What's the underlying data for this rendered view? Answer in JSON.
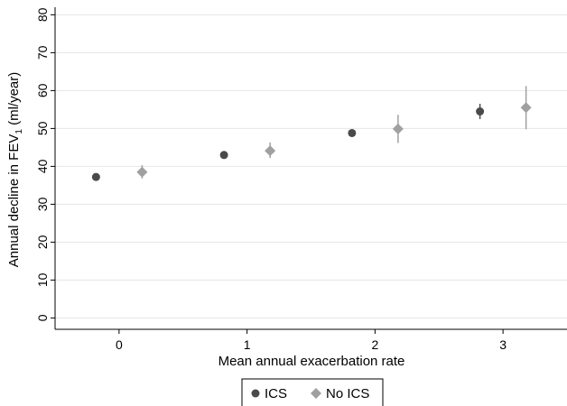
{
  "chart_data": {
    "type": "scatter",
    "title": "",
    "xlabel": "Mean annual exacerbation rate",
    "ylabel_main": "Annual decline in FEV",
    "ylabel_sub": "1",
    "ylabel_tail": " (ml/year)",
    "xlim": [
      -0.5,
      3.5
    ],
    "ylim": [
      -3,
      82
    ],
    "x_ticks": [
      0,
      1,
      2,
      3
    ],
    "y_ticks": [
      0,
      10,
      20,
      30,
      40,
      50,
      60,
      70,
      80
    ],
    "grid": "horizontal",
    "legend_position": "bottom",
    "series": [
      {
        "name": "ICS",
        "marker": "circle",
        "color": "#4a4a4a",
        "points": [
          {
            "x": 0,
            "y": 37.2,
            "lo": 36.8,
            "hi": 37.6
          },
          {
            "x": 1,
            "y": 43.0,
            "lo": 42.6,
            "hi": 43.4
          },
          {
            "x": 2,
            "y": 48.8,
            "lo": 47.8,
            "hi": 49.8
          },
          {
            "x": 3,
            "y": 54.5,
            "lo": 52.5,
            "hi": 56.5
          }
        ]
      },
      {
        "name": "No ICS",
        "marker": "diamond",
        "color": "#a0a0a0",
        "points": [
          {
            "x": 0,
            "y": 38.5,
            "lo": 36.8,
            "hi": 40.3
          },
          {
            "x": 1,
            "y": 44.1,
            "lo": 42.2,
            "hi": 46.3
          },
          {
            "x": 2,
            "y": 49.9,
            "lo": 46.2,
            "hi": 53.6
          },
          {
            "x": 3,
            "y": 55.5,
            "lo": 49.8,
            "hi": 61.2
          }
        ]
      }
    ]
  }
}
